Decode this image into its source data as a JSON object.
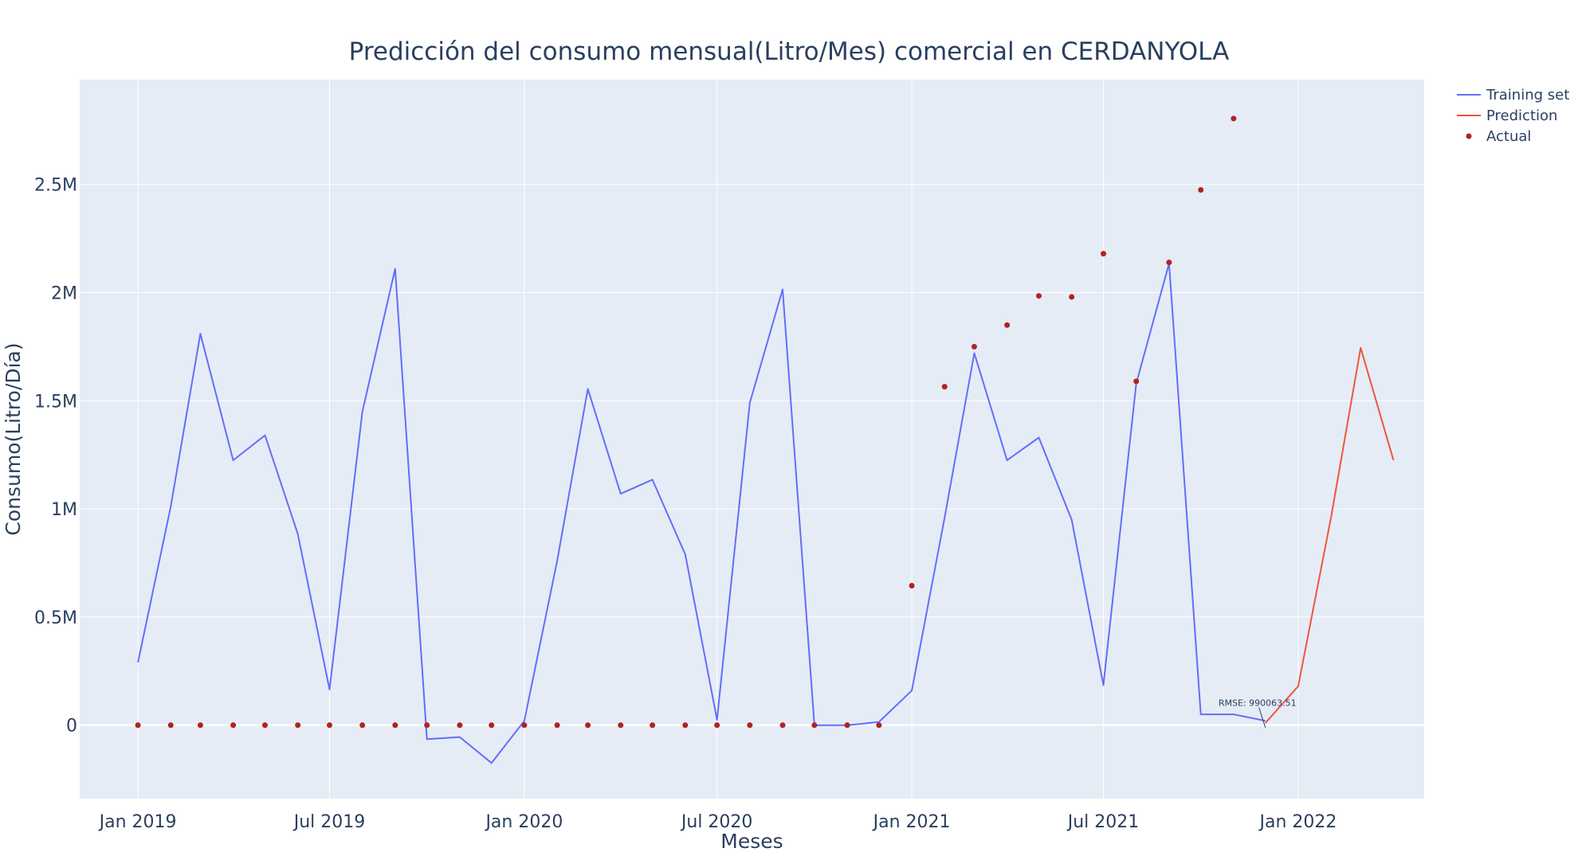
{
  "chart_data": {
    "type": "line",
    "title": "Predicción del consumo mensual(Litro/Mes) comercial en CERDANYOLA",
    "xlabel": "Meses",
    "ylabel": "Consumo(Litro/Día)",
    "x_range": [
      "2018-11-07",
      "2022-04-30"
    ],
    "ylim": [
      -340000,
      2985000
    ],
    "x_ticks": [
      {
        "date": "2019-01-01",
        "label": "Jan 2019"
      },
      {
        "date": "2019-07-01",
        "label": "Jul 2019"
      },
      {
        "date": "2020-01-01",
        "label": "Jan 2020"
      },
      {
        "date": "2020-07-01",
        "label": "Jul 2020"
      },
      {
        "date": "2021-01-01",
        "label": "Jan 2021"
      },
      {
        "date": "2021-07-01",
        "label": "Jul 2021"
      },
      {
        "date": "2022-01-01",
        "label": "Jan 2022"
      }
    ],
    "y_ticks": [
      {
        "value": 0,
        "label": "0"
      },
      {
        "value": 500000,
        "label": "0.5M"
      },
      {
        "value": 1000000,
        "label": "1M"
      },
      {
        "value": 1500000,
        "label": "1.5M"
      },
      {
        "value": 2000000,
        "label": "2M"
      },
      {
        "value": 2500000,
        "label": "2.5M"
      }
    ],
    "grid": true,
    "legend_position": "top-right",
    "series": [
      {
        "name": "Training set",
        "mode": "lines",
        "color": "#636efa",
        "points": [
          {
            "x": "2019-01-01",
            "y": 290000
          },
          {
            "x": "2019-02-01",
            "y": 1010000
          },
          {
            "x": "2019-03-01",
            "y": 1810000
          },
          {
            "x": "2019-04-01",
            "y": 1225000
          },
          {
            "x": "2019-05-01",
            "y": 1340000
          },
          {
            "x": "2019-06-01",
            "y": 885000
          },
          {
            "x": "2019-07-01",
            "y": 165000
          },
          {
            "x": "2019-08-01",
            "y": 1450000
          },
          {
            "x": "2019-09-01",
            "y": 2110000
          },
          {
            "x": "2019-10-01",
            "y": -65000
          },
          {
            "x": "2019-11-01",
            "y": -55000
          },
          {
            "x": "2019-12-01",
            "y": -175000
          },
          {
            "x": "2020-01-01",
            "y": 20000
          },
          {
            "x": "2020-02-01",
            "y": 760000
          },
          {
            "x": "2020-03-01",
            "y": 1555000
          },
          {
            "x": "2020-04-01",
            "y": 1070000
          },
          {
            "x": "2020-05-01",
            "y": 1135000
          },
          {
            "x": "2020-06-01",
            "y": 790000
          },
          {
            "x": "2020-07-01",
            "y": 25000
          },
          {
            "x": "2020-08-01",
            "y": 1490000
          },
          {
            "x": "2020-09-01",
            "y": 2015000
          },
          {
            "x": "2020-10-01",
            "y": 0
          },
          {
            "x": "2020-11-01",
            "y": 0
          },
          {
            "x": "2020-12-01",
            "y": 15000
          },
          {
            "x": "2021-01-01",
            "y": 160000
          },
          {
            "x": "2021-02-01",
            "y": 960000
          },
          {
            "x": "2021-03-01",
            "y": 1720000
          },
          {
            "x": "2021-04-01",
            "y": 1225000
          },
          {
            "x": "2021-05-01",
            "y": 1330000
          },
          {
            "x": "2021-06-01",
            "y": 950000
          },
          {
            "x": "2021-07-01",
            "y": 185000
          },
          {
            "x": "2021-08-01",
            "y": 1580000
          },
          {
            "x": "2021-09-01",
            "y": 2135000
          },
          {
            "x": "2021-10-01",
            "y": 50000
          },
          {
            "x": "2021-11-01",
            "y": 50000
          },
          {
            "x": "2021-12-01",
            "y": 20000
          }
        ]
      },
      {
        "name": "Prediction",
        "mode": "lines",
        "color": "#ef553b",
        "points": [
          {
            "x": "2021-12-01",
            "y": 10000
          },
          {
            "x": "2022-01-01",
            "y": 180000
          },
          {
            "x": "2022-02-01",
            "y": 960000
          },
          {
            "x": "2022-03-01",
            "y": 1745000
          },
          {
            "x": "2022-04-01",
            "y": 1225000
          }
        ]
      },
      {
        "name": "Actual",
        "mode": "markers",
        "color": "#b22222",
        "points": [
          {
            "x": "2019-01-01",
            "y": 0
          },
          {
            "x": "2019-02-01",
            "y": 0
          },
          {
            "x": "2019-03-01",
            "y": 0
          },
          {
            "x": "2019-04-01",
            "y": 0
          },
          {
            "x": "2019-05-01",
            "y": 0
          },
          {
            "x": "2019-06-01",
            "y": 0
          },
          {
            "x": "2019-07-01",
            "y": 0
          },
          {
            "x": "2019-08-01",
            "y": 0
          },
          {
            "x": "2019-09-01",
            "y": 0
          },
          {
            "x": "2019-10-01",
            "y": 0
          },
          {
            "x": "2019-11-01",
            "y": 0
          },
          {
            "x": "2019-12-01",
            "y": 0
          },
          {
            "x": "2020-01-01",
            "y": 0
          },
          {
            "x": "2020-02-01",
            "y": 0
          },
          {
            "x": "2020-03-01",
            "y": 0
          },
          {
            "x": "2020-04-01",
            "y": 0
          },
          {
            "x": "2020-05-01",
            "y": 0
          },
          {
            "x": "2020-06-01",
            "y": 0
          },
          {
            "x": "2020-07-01",
            "y": 0
          },
          {
            "x": "2020-08-01",
            "y": 0
          },
          {
            "x": "2020-09-01",
            "y": 0
          },
          {
            "x": "2020-10-01",
            "y": 0
          },
          {
            "x": "2020-11-01",
            "y": 0
          },
          {
            "x": "2020-12-01",
            "y": 0
          },
          {
            "x": "2021-01-01",
            "y": 645000
          },
          {
            "x": "2021-02-01",
            "y": 1565000
          },
          {
            "x": "2021-03-01",
            "y": 1750000
          },
          {
            "x": "2021-04-01",
            "y": 1850000
          },
          {
            "x": "2021-05-01",
            "y": 1985000
          },
          {
            "x": "2021-06-01",
            "y": 1980000
          },
          {
            "x": "2021-07-01",
            "y": 2180000
          },
          {
            "x": "2021-08-01",
            "y": 1590000
          },
          {
            "x": "2021-09-01",
            "y": 2140000
          },
          {
            "x": "2021-10-01",
            "y": 2475000
          },
          {
            "x": "2021-11-01",
            "y": 2805000
          }
        ]
      }
    ],
    "annotations": [
      {
        "text": "RMSE: 990063.51",
        "x": "2021-12-01",
        "y": 0
      }
    ]
  },
  "colors": {
    "plot_background": "#e5ecf6",
    "grid": "#ffffff",
    "text": "#2a3f5f"
  }
}
